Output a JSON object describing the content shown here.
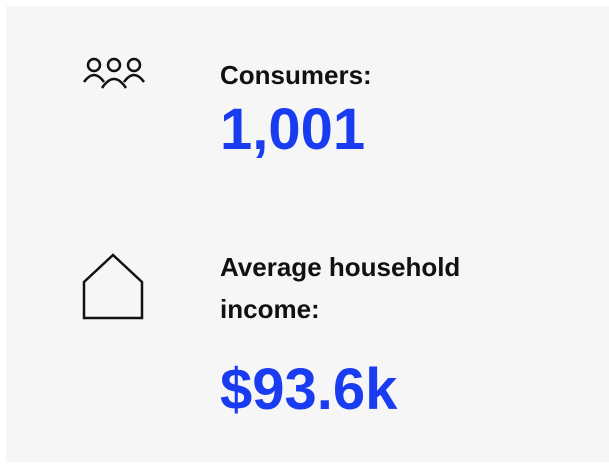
{
  "stats": [
    {
      "label": "Consumers:",
      "value": "1,001"
    },
    {
      "label": "Average household income:",
      "value": "$93.6k"
    }
  ]
}
